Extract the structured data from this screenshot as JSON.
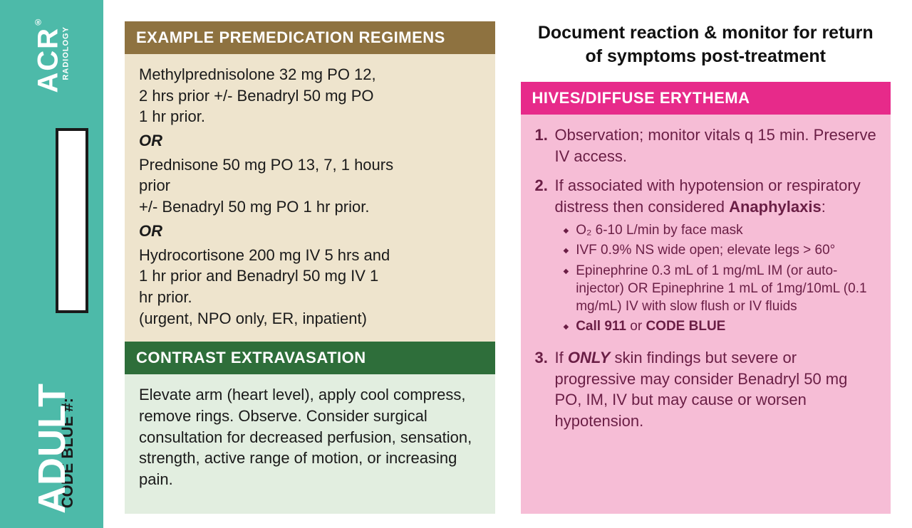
{
  "sidebar": {
    "adult": "ADULT",
    "code_blue": "CODE BLUE #:",
    "acr": "ACR",
    "acr_sub": "RADIOLOGY"
  },
  "left": {
    "premed_header": "EXAMPLE PREMEDICATION REGIMENS",
    "premed_opt1_l1": "Methylprednisolone 32 mg PO 12,",
    "premed_opt1_l2": "2 hrs prior +/- Benadryl 50 mg PO",
    "premed_opt1_l3": "1 hr prior.",
    "or": "OR",
    "premed_opt2_l1": "Prednisone 50 mg PO 13, 7, 1 hours",
    "premed_opt2_l2": "prior",
    "premed_opt2_l3": "+/- Benadryl 50 mg PO 1 hr prior.",
    "premed_opt3_l1": "Hydrocortisone 200 mg IV 5 hrs and",
    "premed_opt3_l2": "1 hr prior and Benadryl 50 mg IV 1",
    "premed_opt3_l3": "hr prior.",
    "premed_opt3_l4": "(urgent, NPO only, ER, inpatient)",
    "extrav_header": "CONTRAST EXTRAVASATION",
    "extrav_body": "Elevate arm (heart level), apply cool compress, remove rings. Observe. Consider surgical consultation for decreased perfusion, sensation, strength, active range of motion, or increasing pain."
  },
  "right": {
    "title": "Document reaction & monitor for return of symptoms post-treatment",
    "hives_header": "HIVES/DIFFUSE ERYTHEMA",
    "step1": "Observation; monitor vitals q 15 min. Preserve IV access.",
    "step2_intro": "If associated with hypotension or respiratory distress then considered ",
    "step2_anaph": "Anaphylaxis",
    "step2_colon": ":",
    "b1": "O₂ 6-10 L/min by face mask",
    "b2": "IVF 0.9% NS wide open; elevate legs > 60°",
    "b3": "Epinephrine 0.3 mL of 1 mg/mL IM (or auto-injector) OR Epinephrine 1 mL of 1mg/10mL (0.1 mg/mL) IV with slow flush or IV fluids",
    "b4_pre": "Call 911",
    "b4_mid": " or ",
    "b4_post": "CODE BLUE",
    "step3_pre": "If ",
    "step3_only": "ONLY",
    "step3_post": " skin findings but severe or progressive may consider Benadryl 50 mg PO, IM, IV but may cause or worsen hypotension."
  },
  "colors": {
    "sidebar_bg": "#4dbaa9",
    "header_brown": "#8e7240",
    "header_green": "#2e6e3a",
    "header_pink": "#e72a8a",
    "body_tan": "#eee4cd",
    "body_green": "#e2eee0",
    "body_pink": "#f6bdd6",
    "pink_text": "#6a1e45"
  }
}
